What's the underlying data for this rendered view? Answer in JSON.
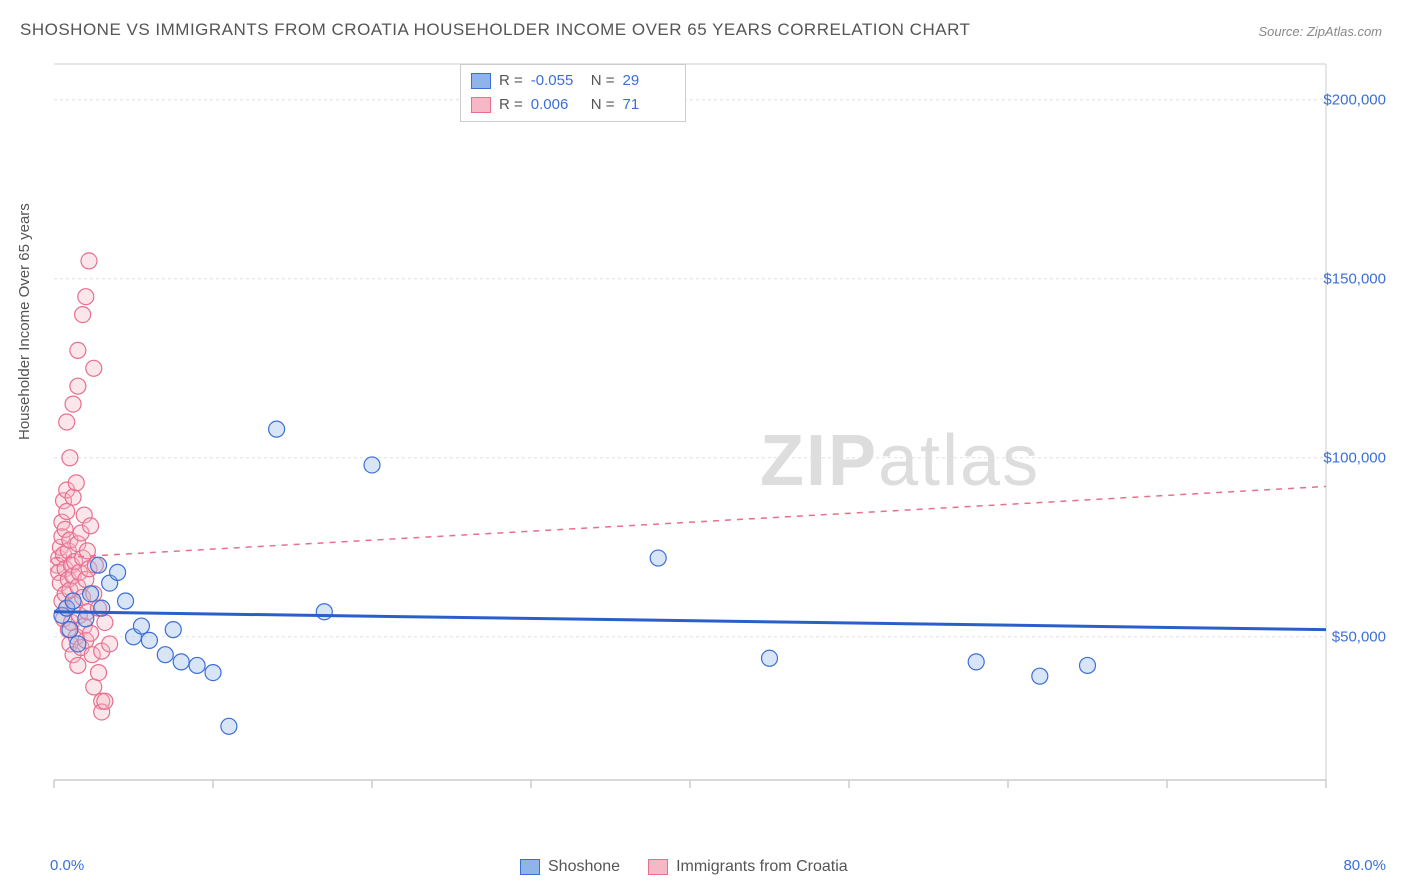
{
  "title": "SHOSHONE VS IMMIGRANTS FROM CROATIA HOUSEHOLDER INCOME OVER 65 YEARS CORRELATION CHART",
  "source": "Source: ZipAtlas.com",
  "ylabel": "Householder Income Over 65 years",
  "watermark_bold": "ZIP",
  "watermark_rest": "atlas",
  "chart": {
    "type": "scatter",
    "background_color": "#ffffff",
    "grid_color": "#e0e0e0",
    "axis_color": "#cccccc",
    "text_color": "#555555",
    "value_color": "#3b6fd8",
    "xlim": [
      0,
      80
    ],
    "ylim": [
      10000,
      210000
    ],
    "x_ticks": [
      0,
      10,
      20,
      30,
      40,
      50,
      60,
      70,
      80
    ],
    "y_ticks": [
      50000,
      100000,
      150000,
      200000
    ],
    "y_tick_labels": [
      "$50,000",
      "$100,000",
      "$150,000",
      "$200,000"
    ],
    "x_min_label": "0.0%",
    "x_max_label": "80.0%",
    "marker_radius": 8,
    "marker_stroke_width": 1.2,
    "marker_fill_opacity": 0.35
  },
  "series": [
    {
      "name": "Shoshone",
      "color_fill": "#8fb4e8",
      "color_stroke": "#3b6fd8",
      "trendline_color": "#2a5fc9",
      "trendline_width": 3,
      "trendline_dash": "none",
      "trend_y_start": 57000,
      "trend_y_end": 52000,
      "stats": {
        "R": "-0.055",
        "N": "29"
      },
      "points": [
        [
          0.5,
          56000
        ],
        [
          0.8,
          58000
        ],
        [
          1,
          52000
        ],
        [
          1.2,
          60000
        ],
        [
          1.5,
          48000
        ],
        [
          2,
          55000
        ],
        [
          2.3,
          62000
        ],
        [
          2.8,
          70000
        ],
        [
          3,
          58000
        ],
        [
          3.5,
          65000
        ],
        [
          4,
          68000
        ],
        [
          4.5,
          60000
        ],
        [
          5,
          50000
        ],
        [
          5.5,
          53000
        ],
        [
          6,
          49000
        ],
        [
          7,
          45000
        ],
        [
          7.5,
          52000
        ],
        [
          8,
          43000
        ],
        [
          9,
          42000
        ],
        [
          10,
          40000
        ],
        [
          11,
          25000
        ],
        [
          14,
          108000
        ],
        [
          17,
          57000
        ],
        [
          20,
          98000
        ],
        [
          38,
          72000
        ],
        [
          45,
          44000
        ],
        [
          58,
          43000
        ],
        [
          62,
          39000
        ],
        [
          65,
          42000
        ]
      ]
    },
    {
      "name": "Immigrants from Croatia",
      "color_fill": "#f4b8c6",
      "color_stroke": "#e86f8d",
      "trendline_color": "#e86f8d",
      "trendline_width": 1.5,
      "trendline_dash": "6,6",
      "trend_y_start": 72000,
      "trend_y_end": 92000,
      "stats": {
        "R": "0.006",
        "N": "71"
      },
      "points": [
        [
          0.2,
          70000
        ],
        [
          0.3,
          72000
        ],
        [
          0.3,
          68000
        ],
        [
          0.4,
          75000
        ],
        [
          0.4,
          65000
        ],
        [
          0.5,
          78000
        ],
        [
          0.5,
          60000
        ],
        [
          0.5,
          82000
        ],
        [
          0.6,
          55000
        ],
        [
          0.6,
          88000
        ],
        [
          0.6,
          73000
        ],
        [
          0.7,
          69000
        ],
        [
          0.7,
          80000
        ],
        [
          0.7,
          62000
        ],
        [
          0.8,
          85000
        ],
        [
          0.8,
          58000
        ],
        [
          0.8,
          91000
        ],
        [
          0.9,
          66000
        ],
        [
          0.9,
          74000
        ],
        [
          0.9,
          52000
        ],
        [
          1,
          48000
        ],
        [
          1,
          77000
        ],
        [
          1,
          63000
        ],
        [
          1.1,
          70000
        ],
        [
          1.1,
          54000
        ],
        [
          1.2,
          89000
        ],
        [
          1.2,
          45000
        ],
        [
          1.2,
          67000
        ],
        [
          1.3,
          71000
        ],
        [
          1.3,
          59000
        ],
        [
          1.4,
          93000
        ],
        [
          1.4,
          50000
        ],
        [
          1.5,
          64000
        ],
        [
          1.5,
          76000
        ],
        [
          1.5,
          42000
        ],
        [
          1.6,
          68000
        ],
        [
          1.6,
          56000
        ],
        [
          1.7,
          79000
        ],
        [
          1.7,
          47000
        ],
        [
          1.8,
          61000
        ],
        [
          1.8,
          72000
        ],
        [
          1.9,
          53000
        ],
        [
          1.9,
          84000
        ],
        [
          2,
          49000
        ],
        [
          2,
          66000
        ],
        [
          2.1,
          74000
        ],
        [
          2.1,
          57000
        ],
        [
          2.2,
          69000
        ],
        [
          2.3,
          51000
        ],
        [
          2.3,
          81000
        ],
        [
          2.4,
          45000
        ],
        [
          2.5,
          62000
        ],
        [
          2.5,
          36000
        ],
        [
          2.6,
          70000
        ],
        [
          2.8,
          40000
        ],
        [
          2.8,
          58000
        ],
        [
          3,
          46000
        ],
        [
          3,
          32000
        ],
        [
          3,
          29000
        ],
        [
          3.2,
          54000
        ],
        [
          3.5,
          48000
        ],
        [
          1,
          100000
        ],
        [
          1.2,
          115000
        ],
        [
          1.5,
          120000
        ],
        [
          1.5,
          130000
        ],
        [
          1.8,
          140000
        ],
        [
          2,
          145000
        ],
        [
          2.2,
          155000
        ],
        [
          0.8,
          110000
        ],
        [
          2.5,
          125000
        ],
        [
          3.2,
          32000
        ]
      ]
    }
  ],
  "stats_legend": {
    "rows": [
      {
        "swatch_fill": "#8fb4e8",
        "swatch_stroke": "#3b6fd8",
        "R": "-0.055",
        "N": "29"
      },
      {
        "swatch_fill": "#f4b8c6",
        "swatch_stroke": "#e86f8d",
        "R": "0.006",
        "N": "71"
      }
    ],
    "label_R": "R =",
    "label_N": "N ="
  },
  "bottom_legend": {
    "items": [
      {
        "swatch_fill": "#8fb4e8",
        "swatch_stroke": "#3b6fd8",
        "label": "Shoshone"
      },
      {
        "swatch_fill": "#f4b8c6",
        "swatch_stroke": "#e86f8d",
        "label": "Immigrants from Croatia"
      }
    ]
  }
}
